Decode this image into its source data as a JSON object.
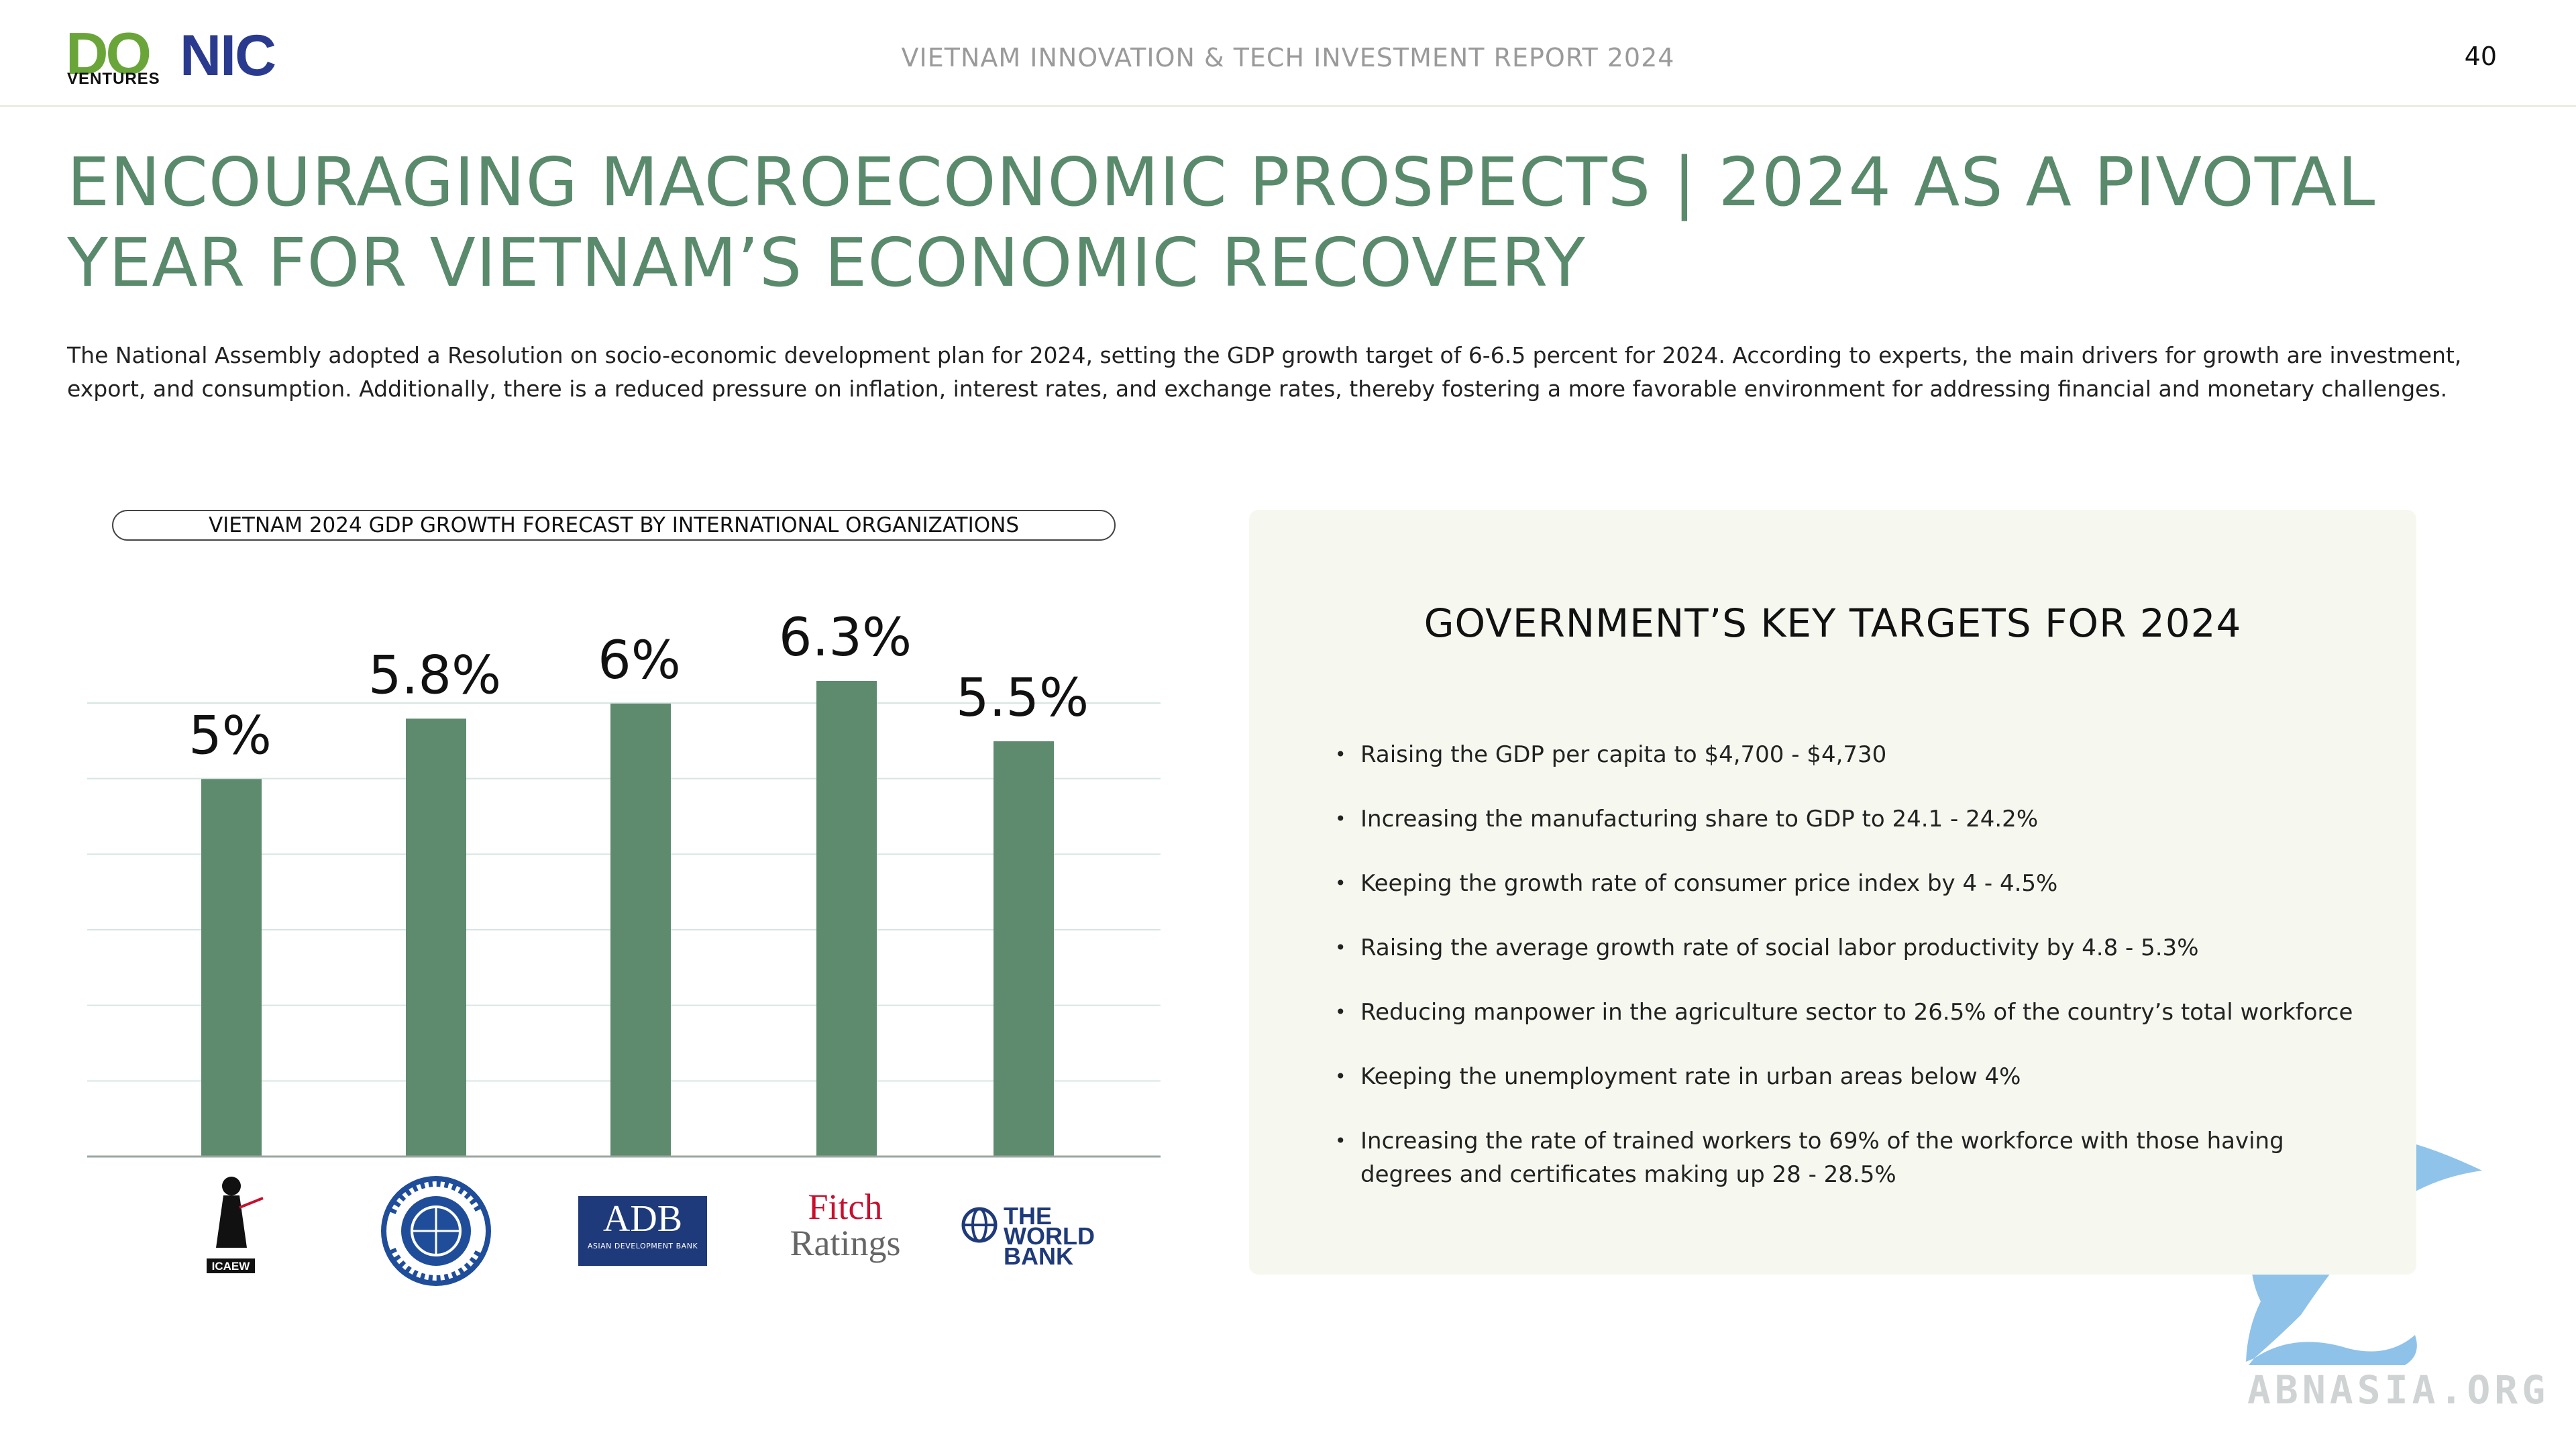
{
  "header": {
    "logo_do": "DO",
    "logo_do_sub": "VENTURES",
    "logo_nic": "NIC",
    "report_title": "VIETNAM INNOVATION & TECH INVESTMENT REPORT 2024",
    "page_number": "40"
  },
  "main": {
    "title_line1": "ENCOURAGING MACROECONOMIC PROSPECTS | 2024 AS A PIVOTAL",
    "title_line2": "YEAR FOR VIETNAM’S ECONOMIC RECOVERY",
    "intro": "The National Assembly adopted a Resolution on socio-economic development plan for 2024, setting the GDP growth target of 6-6.5 percent for 2024. According to experts, the main drivers for growth are investment, export, and consumption. Additionally, there is a reduced pressure on inflation, interest rates, and exchange rates, thereby fostering a more favorable environment for addressing financial and monetary challenges."
  },
  "chart_data": {
    "type": "bar",
    "title": "VIETNAM 2024 GDP GROWTH FORECAST BY INTERNATIONAL ORGANIZATIONS",
    "categories": [
      "ICAEW",
      "IMF",
      "ADB",
      "Fitch Ratings",
      "The World Bank"
    ],
    "values": [
      5,
      5.8,
      6,
      6.3,
      5.5
    ],
    "data_labels": [
      "5%",
      "5.8%",
      "6%",
      "6.3%",
      "5.5%"
    ],
    "ylim": [
      0,
      6
    ],
    "grid": true,
    "bar_color": "#5e8b6e",
    "xlabel": "",
    "ylabel": ""
  },
  "logos": {
    "icaew": "ICAEW",
    "imf": "INTERNATIONAL MONETARY FUND",
    "adb": "ADB",
    "adb_sub": "ASIAN DEVELOPMENT BANK",
    "fitch_1": "Fitch",
    "fitch_2": "Ratings",
    "wb_1": "THE",
    "wb_2": "WORLD",
    "wb_3": "BANK"
  },
  "targets": {
    "title": "GOVERNMENT’S KEY TARGETS FOR 2024",
    "items": [
      "Raising the GDP per capita to $4,700 - $4,730",
      "Increasing the manufacturing share to GDP to 24.1 - 24.2%",
      "Keeping the growth rate of consumer price index by 4 - 4.5%",
      "Raising the average growth rate of social labor productivity by 4.8 - 5.3%",
      "Reducing manpower in the agriculture sector to 26.5% of the country’s total workforce",
      "Keeping the unemployment rate in urban areas below 4%",
      "Increasing the rate of trained workers to 69% of the workforce with those having degrees and certificates making up 28 - 28.5%"
    ]
  },
  "watermark": {
    "text": "ABNASIA.ORG"
  },
  "colors": {
    "title_green": "#5a8a6c",
    "bar_green": "#5e8b6e",
    "panel_bg": "#f6f7ef"
  }
}
